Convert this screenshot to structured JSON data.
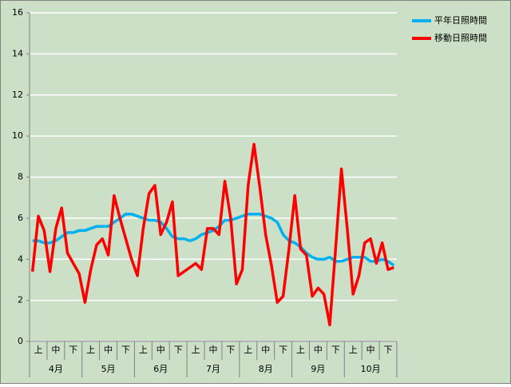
{
  "chart_data": {
    "type": "line",
    "categories": [
      null,
      "上",
      null,
      null,
      "中",
      null,
      null,
      "下",
      null,
      null,
      "上",
      null,
      null,
      "中",
      null,
      null,
      "下",
      null,
      null,
      "上",
      null,
      null,
      "中",
      null,
      null,
      "下",
      null,
      null,
      "上",
      null,
      null,
      "中",
      null,
      null,
      "下",
      null,
      null,
      "上",
      null,
      null,
      "中",
      null,
      null,
      "下",
      null,
      null,
      "上",
      null,
      null,
      "中",
      null,
      null,
      "下",
      null,
      null,
      "上",
      null,
      null,
      "中",
      null,
      null,
      "下",
      null
    ],
    "groups": [
      "4月",
      "5月",
      "6月",
      "7月",
      "8月",
      "9月",
      "10月"
    ],
    "series": [
      {
        "name": "平年日照時間",
        "color": "#00b0f0",
        "values": [
          4.9,
          4.9,
          4.8,
          4.8,
          4.9,
          5.1,
          5.3,
          5.3,
          5.4,
          5.4,
          5.5,
          5.6,
          5.6,
          5.6,
          5.8,
          6.0,
          6.2,
          6.2,
          6.1,
          6.0,
          5.9,
          5.9,
          5.8,
          5.5,
          5.1,
          5.0,
          5.0,
          4.9,
          5.0,
          5.2,
          5.3,
          5.4,
          5.6,
          5.9,
          5.9,
          6.0,
          6.1,
          6.2,
          6.2,
          6.2,
          6.1,
          6.0,
          5.8,
          5.2,
          4.9,
          4.8,
          4.6,
          4.3,
          4.1,
          4.0,
          4.0,
          4.1,
          3.9,
          3.9,
          4.0,
          4.1,
          4.1,
          4.1,
          3.9,
          3.9,
          4.0,
          3.9,
          3.7
        ]
      },
      {
        "name": "移動日照時間",
        "color": "#ff0000",
        "values": [
          3.4,
          6.1,
          5.4,
          3.4,
          5.5,
          6.5,
          4.3,
          3.8,
          3.3,
          1.9,
          3.5,
          4.7,
          5.0,
          4.2,
          7.1,
          6.0,
          5.0,
          4.0,
          3.2,
          5.5,
          7.2,
          7.6,
          5.2,
          5.8,
          6.8,
          3.2,
          3.4,
          3.6,
          3.8,
          3.5,
          5.5,
          5.5,
          5.2,
          7.8,
          6.0,
          2.8,
          3.5,
          7.6,
          9.6,
          7.5,
          5.2,
          3.7,
          1.9,
          2.2,
          4.5,
          7.1,
          4.5,
          4.2,
          2.2,
          2.6,
          2.3,
          0.8,
          4.5,
          8.4,
          5.5,
          2.3,
          3.2,
          4.8,
          5.0,
          3.8,
          4.8,
          3.5,
          3.6
        ]
      }
    ],
    "ylim": [
      0,
      16
    ],
    "yticks": [
      0,
      2,
      4,
      6,
      8,
      10,
      12,
      14,
      16
    ],
    "grid": true
  }
}
